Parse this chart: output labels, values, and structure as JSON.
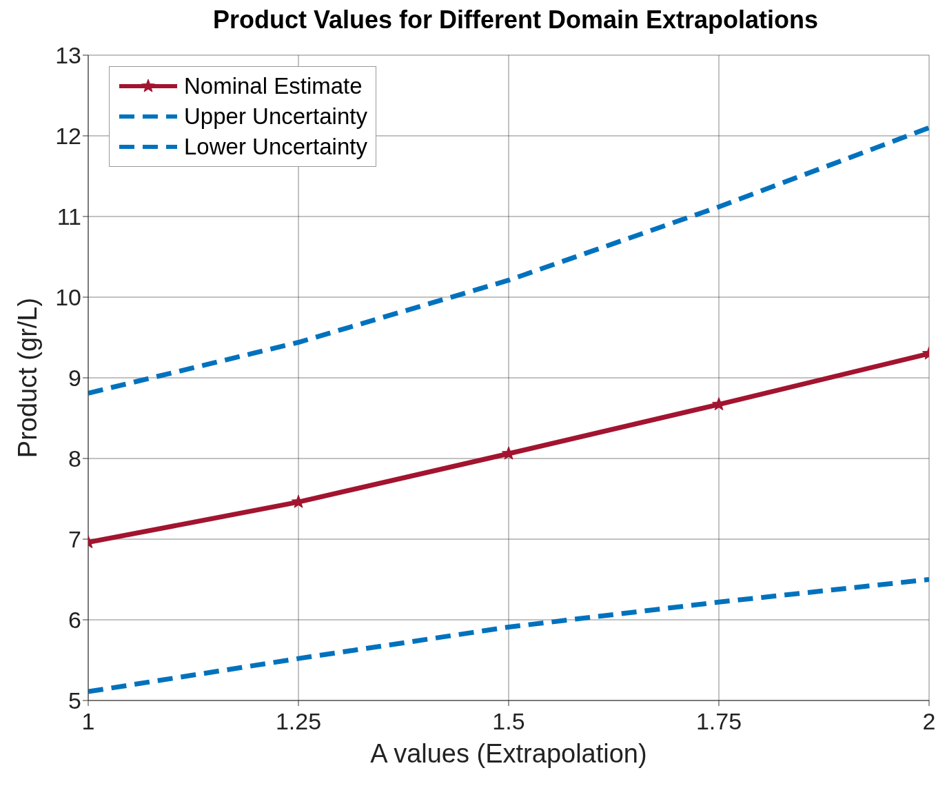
{
  "chart_data": {
    "type": "line",
    "title": "Product Values for Different Domain Extrapolations",
    "xlabel": "A values (Extrapolation)",
    "ylabel": "Product (gr/L)",
    "x": [
      1,
      1.25,
      1.5,
      1.75,
      2
    ],
    "series": [
      {
        "name": "Nominal Estimate",
        "color": "#a2142f",
        "values": [
          6.96,
          7.46,
          8.06,
          8.67,
          9.3
        ],
        "marker": "star",
        "line_style": "solid"
      },
      {
        "name": "Upper Uncertainty",
        "color": "#0072bd",
        "values": [
          8.81,
          9.44,
          10.21,
          11.12,
          12.1
        ],
        "marker": "none",
        "line_style": "dashed"
      },
      {
        "name": "Lower Uncertainty",
        "color": "#0072bd",
        "values": [
          5.11,
          5.52,
          5.91,
          6.22,
          6.5
        ],
        "marker": "none",
        "line_style": "dashed"
      }
    ],
    "xlim": [
      1,
      2
    ],
    "xticks": [
      1,
      1.25,
      1.5,
      1.75,
      2
    ],
    "ylim": [
      5,
      13
    ],
    "yticks": [
      5,
      6,
      7,
      8,
      9,
      10,
      11,
      12,
      13
    ],
    "grid": true,
    "legend": "top left"
  }
}
